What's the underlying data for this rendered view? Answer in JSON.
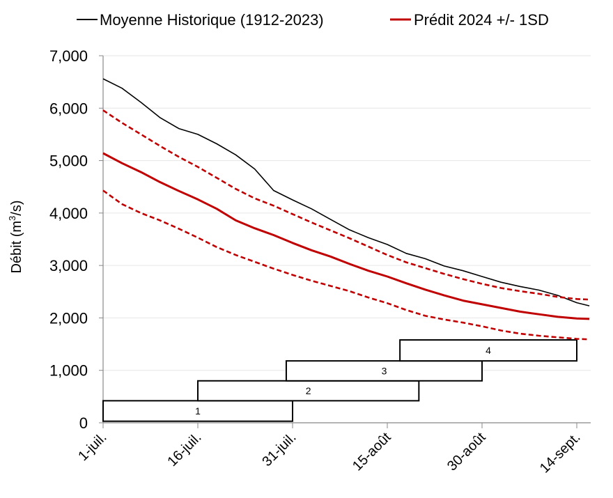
{
  "chart_data": {
    "type": "line",
    "ylabel_text": "Débit (m",
    "ylabel_sup": "3",
    "ylabel_tail": "/s)",
    "ylim": [
      0,
      7000
    ],
    "y_ticks": [
      0,
      1000,
      2000,
      3000,
      4000,
      5000,
      6000,
      7000
    ],
    "y_tick_labels": [
      "0",
      "1,000",
      "2,000",
      "3,000",
      "4,000",
      "5,000",
      "6,000",
      "7,000"
    ],
    "x_tick_labels": [
      "1-juil.",
      "16-juil.",
      "31-juil.",
      "15-août",
      "30-août",
      "14-sept."
    ],
    "x_tick_days": [
      0,
      15,
      30,
      45,
      60,
      75
    ],
    "x_range_days": [
      0,
      77
    ],
    "grid": "horizontal",
    "legend": {
      "position": "top",
      "entries": [
        {
          "label": "Moyenne Historique (1912-2023)",
          "color": "#000000"
        },
        {
          "label": "Prédit 2024 +/- 1SD",
          "color": "#c00000"
        }
      ]
    },
    "series": [
      {
        "name": "Moyenne Historique (1912-2023)",
        "color": "#000000",
        "style": "solid",
        "x": [
          0,
          3,
          6,
          9,
          12,
          15,
          18,
          21,
          24,
          27,
          30,
          33,
          36,
          39,
          42,
          45,
          48,
          51,
          54,
          57,
          60,
          63,
          66,
          69,
          72,
          75,
          77
        ],
        "y": [
          6560,
          6380,
          6110,
          5820,
          5610,
          5500,
          5320,
          5110,
          4840,
          4430,
          4250,
          4080,
          3880,
          3680,
          3530,
          3400,
          3230,
          3130,
          2990,
          2900,
          2790,
          2680,
          2600,
          2530,
          2430,
          2290,
          2230
        ]
      },
      {
        "name": "Prédit 2024",
        "color": "#c00000",
        "style": "solid",
        "x": [
          0,
          3,
          6,
          9,
          12,
          15,
          18,
          21,
          24,
          27,
          30,
          33,
          36,
          39,
          42,
          45,
          48,
          51,
          54,
          57,
          60,
          63,
          66,
          69,
          72,
          75,
          77
        ],
        "y": [
          5140,
          4950,
          4780,
          4590,
          4420,
          4260,
          4080,
          3860,
          3710,
          3580,
          3430,
          3290,
          3170,
          3030,
          2900,
          2790,
          2660,
          2540,
          2430,
          2330,
          2260,
          2190,
          2120,
          2070,
          2020,
          1990,
          1980
        ]
      },
      {
        "name": "+1SD",
        "color": "#c00000",
        "style": "dashed",
        "x": [
          0,
          3,
          6,
          9,
          12,
          15,
          18,
          21,
          24,
          27,
          30,
          33,
          36,
          39,
          42,
          45,
          48,
          51,
          54,
          57,
          60,
          63,
          66,
          69,
          72,
          75,
          77
        ],
        "y": [
          5960,
          5720,
          5500,
          5280,
          5070,
          4880,
          4670,
          4460,
          4280,
          4140,
          3980,
          3820,
          3670,
          3520,
          3360,
          3200,
          3060,
          2950,
          2840,
          2740,
          2650,
          2570,
          2510,
          2460,
          2400,
          2360,
          2350
        ]
      },
      {
        "name": "-1SD",
        "color": "#c00000",
        "style": "dashed",
        "x": [
          0,
          3,
          6,
          9,
          12,
          15,
          18,
          21,
          24,
          27,
          30,
          33,
          36,
          39,
          42,
          45,
          48,
          51,
          54,
          57,
          60,
          63,
          66,
          69,
          72,
          75,
          77
        ],
        "y": [
          4430,
          4170,
          4000,
          3860,
          3700,
          3530,
          3350,
          3200,
          3070,
          2940,
          2820,
          2710,
          2610,
          2510,
          2390,
          2280,
          2150,
          2040,
          1970,
          1910,
          1840,
          1760,
          1700,
          1660,
          1630,
          1600,
          1590
        ]
      }
    ],
    "windows": [
      {
        "label": "1",
        "start_day": 0,
        "end_day": 30,
        "y_low": 30,
        "y_high": 420
      },
      {
        "label": "2",
        "start_day": 15,
        "end_day": 50,
        "y_low": 420,
        "y_high": 800
      },
      {
        "label": "3",
        "start_day": 29,
        "end_day": 60,
        "y_low": 800,
        "y_high": 1180
      },
      {
        "label": "4",
        "start_day": 47,
        "end_day": 75,
        "y_low": 1180,
        "y_high": 1580
      }
    ]
  }
}
